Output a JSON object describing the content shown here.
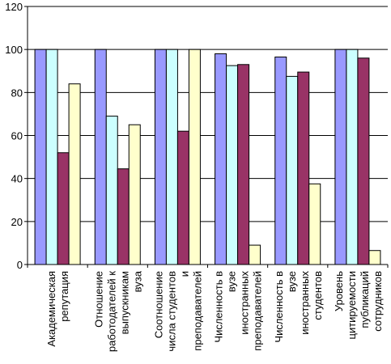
{
  "chart_data": {
    "type": "bar",
    "title": "",
    "xlabel": "",
    "ylabel": "",
    "ylim": [
      0,
      120
    ],
    "yticks": [
      0,
      20,
      40,
      60,
      80,
      100,
      120
    ],
    "grid": true,
    "legend": "none",
    "categories": [
      [
        "Академическая",
        "репутация"
      ],
      [
        "Отношение",
        "работодателей к",
        "выпускникам",
        "вуза"
      ],
      [
        "Соотношение",
        "числа студентов",
        "и",
        "преподавателей"
      ],
      [
        "Численность в",
        "вузе",
        "иностранных",
        "преподавателей"
      ],
      [
        "Численность в",
        "вузе",
        "иностранных",
        "студентов"
      ],
      [
        "Уровень",
        "цитируемости",
        "публикаций",
        "сотрудников"
      ]
    ],
    "series": [
      {
        "color": "#9999FF",
        "values": [
          100,
          100,
          100,
          98,
          96.5,
          100
        ]
      },
      {
        "color": "#CCFFFF",
        "values": [
          100,
          69,
          100,
          92.5,
          87.5,
          100
        ]
      },
      {
        "color": "#993366",
        "values": [
          52,
          44.5,
          62,
          93,
          89.5,
          96
        ]
      },
      {
        "color": "#FFFFCC",
        "values": [
          84,
          65,
          100,
          9,
          37.5,
          6.5
        ]
      }
    ]
  }
}
